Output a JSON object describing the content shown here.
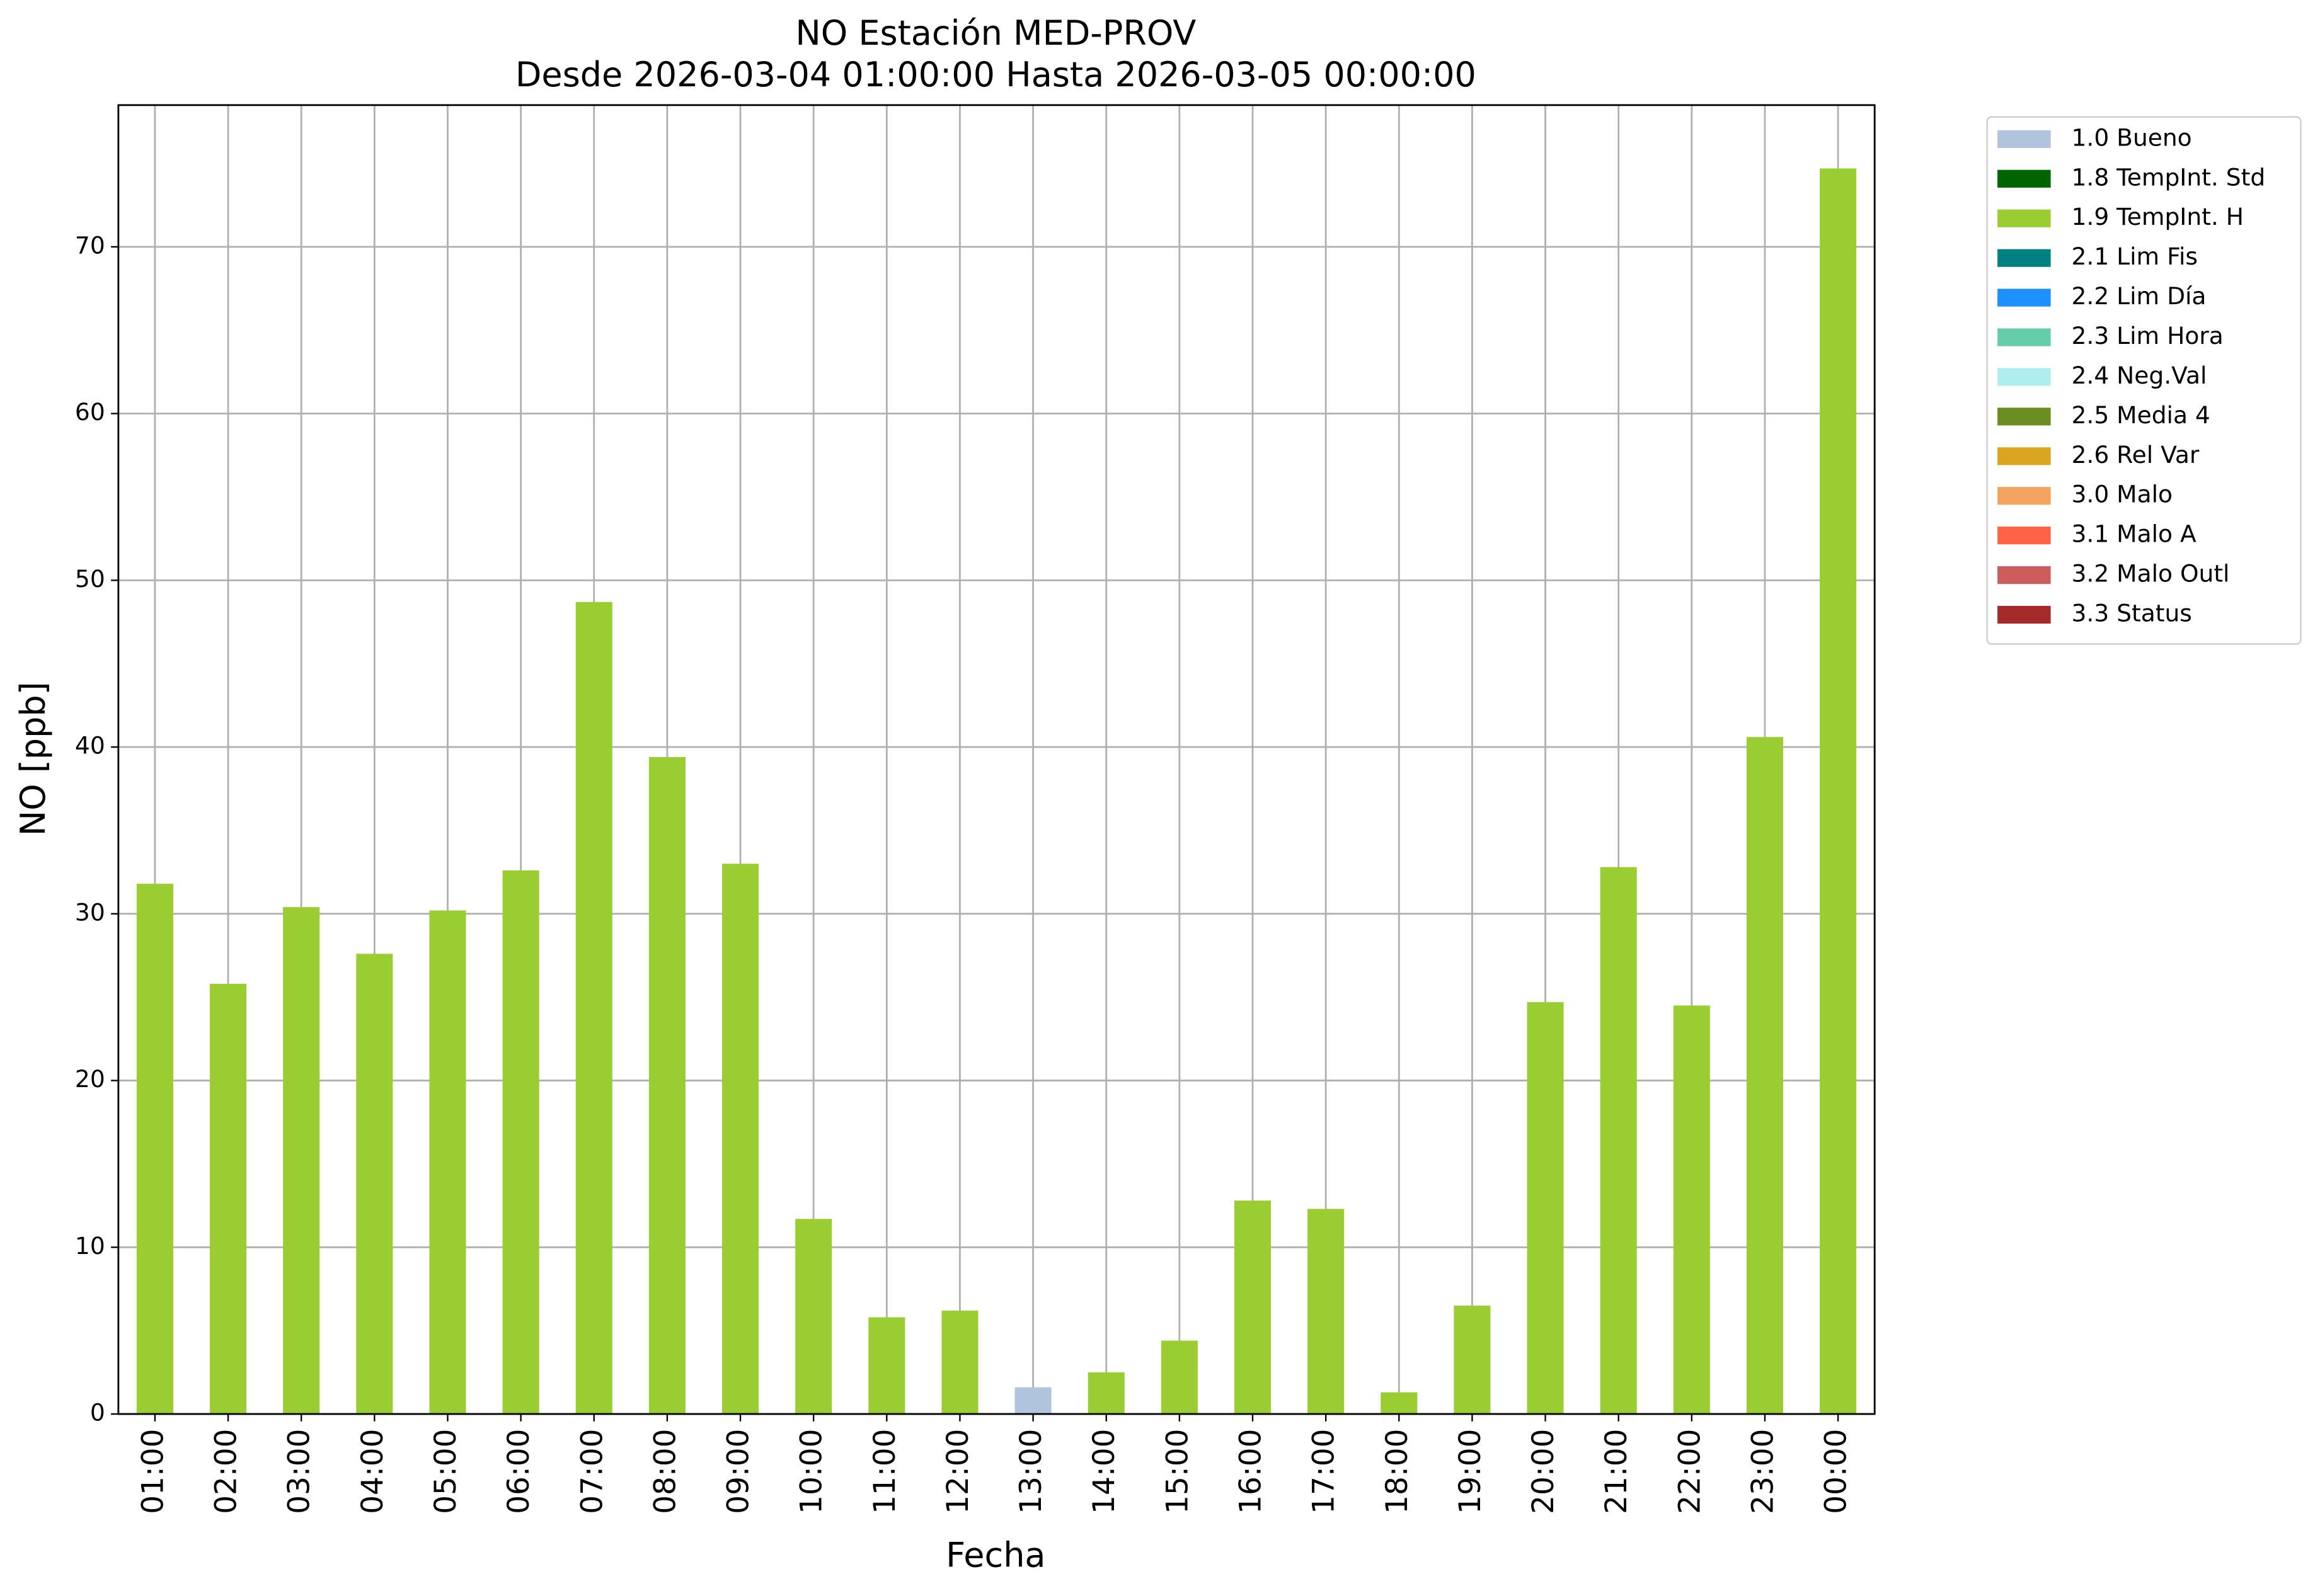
{
  "chart_data": {
    "type": "stacked_bar",
    "title": "NO Estación MED-PROV",
    "subtitle": "Desde 2026-03-04 01:00:00 Hasta 2026-03-05 00:00:00",
    "x_label": "Fecha",
    "y_label": "NO [ppb]",
    "categories": [
      "01:00",
      "02:00",
      "03:00",
      "04:00",
      "05:00",
      "06:00",
      "07:00",
      "08:00",
      "09:00",
      "10:00",
      "11:00",
      "12:00",
      "13:00",
      "14:00",
      "15:00",
      "16:00",
      "17:00",
      "18:00",
      "19:00",
      "20:00",
      "21:00",
      "22:00",
      "23:00",
      "00:00"
    ],
    "series": [
      {
        "name": "1.0 Bueno",
        "color": "#b0c4de",
        "values": [
          null,
          null,
          null,
          null,
          null,
          null,
          null,
          null,
          null,
          null,
          null,
          null,
          1.6,
          null,
          null,
          null,
          null,
          null,
          null,
          null,
          null,
          null,
          null,
          null
        ]
      },
      {
        "name": "1.8 TempInt. Std",
        "color": "#006400",
        "values": [
          null,
          null,
          null,
          null,
          null,
          null,
          null,
          null,
          null,
          null,
          null,
          null,
          null,
          null,
          null,
          null,
          null,
          null,
          null,
          null,
          null,
          null,
          null,
          null
        ]
      },
      {
        "name": "1.9 TempInt. H",
        "color": "#9acd32",
        "values": [
          31.8,
          25.8,
          30.4,
          27.6,
          30.2,
          32.6,
          48.7,
          39.4,
          33.0,
          11.7,
          5.8,
          6.2,
          null,
          2.5,
          4.4,
          12.8,
          12.3,
          1.3,
          6.5,
          24.7,
          32.8,
          24.5,
          40.6,
          74.7
        ]
      },
      {
        "name": "2.1 Lim Fis",
        "color": "#008080",
        "values": [
          null,
          null,
          null,
          null,
          null,
          null,
          null,
          null,
          null,
          null,
          null,
          null,
          null,
          null,
          null,
          null,
          null,
          null,
          null,
          null,
          null,
          null,
          null,
          null
        ]
      },
      {
        "name": "2.2 Lim Día",
        "color": "#1e90ff",
        "values": [
          null,
          null,
          null,
          null,
          null,
          null,
          null,
          null,
          null,
          null,
          null,
          null,
          null,
          null,
          null,
          null,
          null,
          null,
          null,
          null,
          null,
          null,
          null,
          null
        ]
      },
      {
        "name": "2.3 Lim Hora",
        "color": "#66cdaa",
        "values": [
          null,
          null,
          null,
          null,
          null,
          null,
          null,
          null,
          null,
          null,
          null,
          null,
          null,
          null,
          null,
          null,
          null,
          null,
          null,
          null,
          null,
          null,
          null,
          null
        ]
      },
      {
        "name": "2.4 Neg.Val",
        "color": "#afeeee",
        "values": [
          null,
          null,
          null,
          null,
          null,
          null,
          null,
          null,
          null,
          null,
          null,
          null,
          null,
          null,
          null,
          null,
          null,
          null,
          null,
          null,
          null,
          null,
          null,
          null
        ]
      },
      {
        "name": "2.5 Media 4",
        "color": "#6b8e23",
        "values": [
          null,
          null,
          null,
          null,
          null,
          null,
          null,
          null,
          null,
          null,
          null,
          null,
          null,
          null,
          null,
          null,
          null,
          null,
          null,
          null,
          null,
          null,
          null,
          null
        ]
      },
      {
        "name": "2.6 Rel Var",
        "color": "#daa520",
        "values": [
          null,
          null,
          null,
          null,
          null,
          null,
          null,
          null,
          null,
          null,
          null,
          null,
          null,
          null,
          null,
          null,
          null,
          null,
          null,
          null,
          null,
          null,
          null,
          null
        ]
      },
      {
        "name": "3.0 Malo",
        "color": "#f4a460",
        "values": [
          null,
          null,
          null,
          null,
          null,
          null,
          null,
          null,
          null,
          null,
          null,
          null,
          null,
          null,
          null,
          null,
          null,
          null,
          null,
          null,
          null,
          null,
          null,
          null
        ]
      },
      {
        "name": "3.1 Malo A",
        "color": "#ff6347",
        "values": [
          null,
          null,
          null,
          null,
          null,
          null,
          null,
          null,
          null,
          null,
          null,
          null,
          null,
          null,
          null,
          null,
          null,
          null,
          null,
          null,
          null,
          null,
          null,
          null
        ]
      },
      {
        "name": "3.2 Malo Outl",
        "color": "#cd5c5c",
        "values": [
          null,
          null,
          null,
          null,
          null,
          null,
          null,
          null,
          null,
          null,
          null,
          null,
          null,
          null,
          null,
          null,
          null,
          null,
          null,
          null,
          null,
          null,
          null,
          null
        ]
      },
      {
        "name": "3.3 Status",
        "color": "#a52a2a",
        "values": [
          null,
          null,
          null,
          null,
          null,
          null,
          null,
          null,
          null,
          null,
          null,
          null,
          null,
          null,
          null,
          null,
          null,
          null,
          null,
          null,
          null,
          null,
          null,
          null
        ]
      }
    ],
    "ylim": [
      0,
      78.5
    ],
    "yticks": [
      0,
      10,
      20,
      30,
      40,
      50,
      60,
      70
    ],
    "grid": true,
    "legend": "outside-right"
  }
}
